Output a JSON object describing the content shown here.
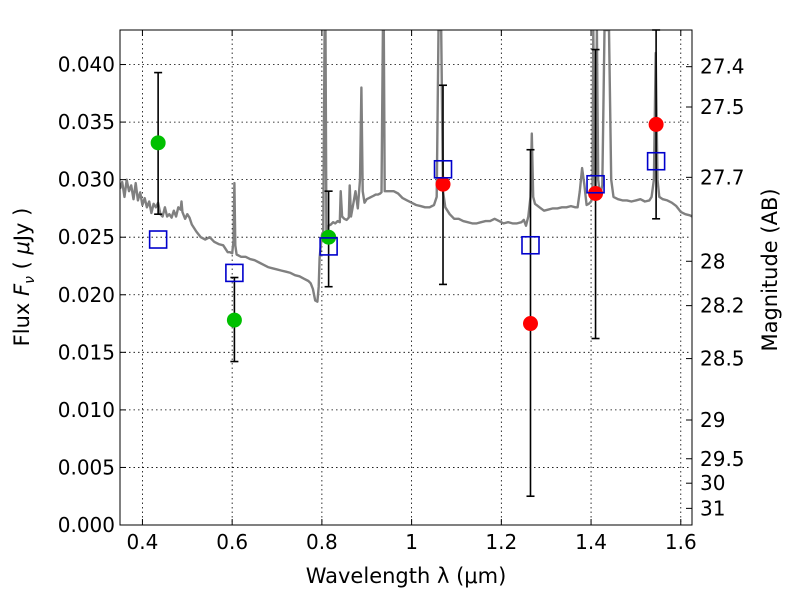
{
  "chart_data": {
    "type": "scatter",
    "xlabel": "Wavelength  λ (μm)",
    "ylabel": "Flux  F_ν  ( μJy )",
    "ylabel_parts": [
      "Flux  ",
      "F",
      "ν",
      "  ( ",
      "μ",
      "Jy )"
    ],
    "y2label": "Magnitude (AB)",
    "xlim": [
      0.35,
      1.625
    ],
    "ylim": [
      0.0,
      0.043
    ],
    "grid": true,
    "x_ticks": [
      0.4,
      0.6,
      0.8,
      1.0,
      1.2,
      1.4,
      1.6
    ],
    "x_tick_labels": [
      "0.4",
      "0.6",
      "0.8",
      "1",
      "1.2",
      "1.4",
      "1.6"
    ],
    "y_ticks": [
      0.0,
      0.005,
      0.01,
      0.015,
      0.02,
      0.025,
      0.03,
      0.035,
      0.04
    ],
    "y_tick_labels": [
      "0.000",
      "0.005",
      "0.010",
      "0.015",
      "0.020",
      "0.025",
      "0.030",
      "0.035",
      "0.040"
    ],
    "mag_ticks": [
      {
        "mag": 27.4,
        "label": "27.4"
      },
      {
        "mag": 27.5,
        "label": "27.5"
      },
      {
        "mag": 27.7,
        "label": "27.7"
      },
      {
        "mag": 28,
        "label": "28"
      },
      {
        "mag": 28.2,
        "label": "28.2"
      },
      {
        "mag": 28.5,
        "label": "28.5"
      },
      {
        "mag": 29,
        "label": "29"
      },
      {
        "mag": 29.5,
        "label": "29.5"
      },
      {
        "mag": 30,
        "label": "30"
      },
      {
        "mag": 31,
        "label": "31"
      }
    ],
    "model_spectrum": {
      "color": "#808080",
      "points": [
        [
          0.35,
          0.0292
        ],
        [
          0.355,
          0.0298
        ],
        [
          0.36,
          0.0285
        ],
        [
          0.365,
          0.03
        ],
        [
          0.37,
          0.029
        ],
        [
          0.375,
          0.0295
        ],
        [
          0.38,
          0.0283
        ],
        [
          0.385,
          0.0297
        ],
        [
          0.39,
          0.0282
        ],
        [
          0.395,
          0.0289
        ],
        [
          0.4,
          0.0278
        ],
        [
          0.405,
          0.0284
        ],
        [
          0.41,
          0.0276
        ],
        [
          0.415,
          0.0281
        ],
        [
          0.42,
          0.0271
        ],
        [
          0.425,
          0.0279
        ],
        [
          0.43,
          0.0276
        ],
        [
          0.435,
          0.028
        ],
        [
          0.44,
          0.027
        ],
        [
          0.445,
          0.0268
        ],
        [
          0.45,
          0.0276
        ],
        [
          0.455,
          0.0268
        ],
        [
          0.46,
          0.027
        ],
        [
          0.465,
          0.0267
        ],
        [
          0.47,
          0.0273
        ],
        [
          0.475,
          0.0268
        ],
        [
          0.48,
          0.0276
        ],
        [
          0.485,
          0.0274
        ],
        [
          0.487,
          0.0281
        ],
        [
          0.489,
          0.0272
        ],
        [
          0.495,
          0.0266
        ],
        [
          0.5,
          0.027
        ],
        [
          0.505,
          0.0267
        ],
        [
          0.51,
          0.0261
        ],
        [
          0.52,
          0.0255
        ],
        [
          0.53,
          0.025
        ],
        [
          0.54,
          0.0248
        ],
        [
          0.55,
          0.025
        ],
        [
          0.56,
          0.0246
        ],
        [
          0.57,
          0.0244
        ],
        [
          0.58,
          0.0243
        ],
        [
          0.59,
          0.0237
        ],
        [
          0.595,
          0.0237
        ],
        [
          0.6,
          0.0236
        ],
        [
          0.603,
          0.0247
        ],
        [
          0.605,
          0.0297
        ],
        [
          0.607,
          0.0243
        ],
        [
          0.61,
          0.0235
        ],
        [
          0.62,
          0.0233
        ],
        [
          0.63,
          0.0233
        ],
        [
          0.64,
          0.0231
        ],
        [
          0.65,
          0.023
        ],
        [
          0.66,
          0.0228
        ],
        [
          0.67,
          0.0226
        ],
        [
          0.68,
          0.0224
        ],
        [
          0.69,
          0.0223
        ],
        [
          0.7,
          0.0222
        ],
        [
          0.71,
          0.0221
        ],
        [
          0.72,
          0.022
        ],
        [
          0.73,
          0.0219
        ],
        [
          0.74,
          0.0217
        ],
        [
          0.75,
          0.0216
        ],
        [
          0.76,
          0.0214
        ],
        [
          0.77,
          0.0212
        ],
        [
          0.775,
          0.021
        ],
        [
          0.78,
          0.0205
        ],
        [
          0.785,
          0.0195
        ],
        [
          0.79,
          0.0194
        ],
        [
          0.793,
          0.0207
        ],
        [
          0.795,
          0.0232
        ],
        [
          0.8,
          0.0252
        ],
        [
          0.803,
          0.0247
        ],
        [
          0.806,
          0.043
        ],
        [
          0.808,
          0.043
        ],
        [
          0.81,
          0.0256
        ],
        [
          0.815,
          0.026
        ],
        [
          0.82,
          0.0261
        ],
        [
          0.825,
          0.0263
        ],
        [
          0.83,
          0.0262
        ],
        [
          0.835,
          0.0264
        ],
        [
          0.84,
          0.0263
        ],
        [
          0.842,
          0.029
        ],
        [
          0.845,
          0.0268
        ],
        [
          0.85,
          0.0266
        ],
        [
          0.855,
          0.0265
        ],
        [
          0.86,
          0.0267
        ],
        [
          0.862,
          0.0295
        ],
        [
          0.865,
          0.0268
        ],
        [
          0.87,
          0.0279
        ],
        [
          0.875,
          0.029
        ],
        [
          0.88,
          0.0275
        ],
        [
          0.885,
          0.03
        ],
        [
          0.888,
          0.038
        ],
        [
          0.891,
          0.029
        ],
        [
          0.895,
          0.028
        ],
        [
          0.9,
          0.0283
        ],
        [
          0.905,
          0.0284
        ],
        [
          0.91,
          0.0285
        ],
        [
          0.915,
          0.0286
        ],
        [
          0.92,
          0.0287
        ],
        [
          0.925,
          0.0287
        ],
        [
          0.93,
          0.0288
        ],
        [
          0.933,
          0.0289
        ],
        [
          0.936,
          0.043
        ],
        [
          0.938,
          0.043
        ],
        [
          0.94,
          0.029
        ],
        [
          0.95,
          0.029
        ],
        [
          0.96,
          0.029
        ],
        [
          0.97,
          0.0288
        ],
        [
          0.98,
          0.0284
        ],
        [
          0.99,
          0.0282
        ],
        [
          1.0,
          0.028
        ],
        [
          1.01,
          0.0278
        ],
        [
          1.02,
          0.0277
        ],
        [
          1.03,
          0.0276
        ],
        [
          1.04,
          0.0276
        ],
        [
          1.05,
          0.0278
        ],
        [
          1.056,
          0.0285
        ],
        [
          1.06,
          0.043
        ],
        [
          1.066,
          0.043
        ],
        [
          1.07,
          0.029
        ],
        [
          1.075,
          0.0276
        ],
        [
          1.085,
          0.027
        ],
        [
          1.095,
          0.0266
        ],
        [
          1.105,
          0.0266
        ],
        [
          1.115,
          0.0264
        ],
        [
          1.125,
          0.0263
        ],
        [
          1.135,
          0.0262
        ],
        [
          1.145,
          0.0262
        ],
        [
          1.155,
          0.0263
        ],
        [
          1.165,
          0.0264
        ],
        [
          1.175,
          0.0264
        ],
        [
          1.185,
          0.0266
        ],
        [
          1.195,
          0.0264
        ],
        [
          1.205,
          0.0262
        ],
        [
          1.215,
          0.0263
        ],
        [
          1.225,
          0.0262
        ],
        [
          1.235,
          0.0262
        ],
        [
          1.245,
          0.0263
        ],
        [
          1.25,
          0.0265
        ],
        [
          1.255,
          0.026
        ],
        [
          1.26,
          0.0268
        ],
        [
          1.265,
          0.0285
        ],
        [
          1.268,
          0.034
        ],
        [
          1.271,
          0.0285
        ],
        [
          1.275,
          0.0279
        ],
        [
          1.285,
          0.0276
        ],
        [
          1.295,
          0.0273
        ],
        [
          1.305,
          0.0274
        ],
        [
          1.315,
          0.0275
        ],
        [
          1.325,
          0.0275
        ],
        [
          1.335,
          0.0276
        ],
        [
          1.345,
          0.0276
        ],
        [
          1.355,
          0.0277
        ],
        [
          1.365,
          0.0276
        ],
        [
          1.37,
          0.0276
        ],
        [
          1.375,
          0.029
        ],
        [
          1.38,
          0.031
        ],
        [
          1.385,
          0.0296
        ],
        [
          1.39,
          0.0278
        ],
        [
          1.395,
          0.0279
        ],
        [
          1.4,
          0.0281
        ],
        [
          1.403,
          0.0285
        ],
        [
          1.405,
          0.043
        ],
        [
          1.408,
          0.031
        ],
        [
          1.41,
          0.0285
        ],
        [
          1.413,
          0.043
        ],
        [
          1.416,
          0.03
        ],
        [
          1.42,
          0.0286
        ],
        [
          1.425,
          0.0295
        ],
        [
          1.43,
          0.043
        ],
        [
          1.44,
          0.043
        ],
        [
          1.445,
          0.03
        ],
        [
          1.45,
          0.0285
        ],
        [
          1.46,
          0.0283
        ],
        [
          1.47,
          0.0282
        ],
        [
          1.48,
          0.0282
        ],
        [
          1.49,
          0.0281
        ],
        [
          1.5,
          0.0282
        ],
        [
          1.51,
          0.0283
        ],
        [
          1.52,
          0.0281
        ],
        [
          1.53,
          0.0282
        ],
        [
          1.535,
          0.0285
        ],
        [
          1.54,
          0.03
        ],
        [
          1.544,
          0.041
        ],
        [
          1.548,
          0.03
        ],
        [
          1.552,
          0.0285
        ],
        [
          1.56,
          0.0283
        ],
        [
          1.57,
          0.0282
        ],
        [
          1.58,
          0.028
        ],
        [
          1.59,
          0.0277
        ],
        [
          1.6,
          0.0272
        ],
        [
          1.61,
          0.027
        ],
        [
          1.62,
          0.0269
        ],
        [
          1.625,
          0.0268
        ]
      ]
    },
    "observed_points": [
      {
        "x": 0.435,
        "y": 0.0332,
        "yerr_low": 0.0062,
        "yerr_high": 0.0061,
        "color": "#00c000"
      },
      {
        "x": 0.605,
        "y": 0.0178,
        "yerr_low": 0.0036,
        "yerr_high": 0.0037,
        "color": "#00c000"
      },
      {
        "x": 0.815,
        "y": 0.025,
        "yerr_low": 0.0043,
        "yerr_high": 0.004,
        "color": "#00c000"
      },
      {
        "x": 1.07,
        "y": 0.0296,
        "yerr_low": 0.0087,
        "yerr_high": 0.0086,
        "color": "#ff0000"
      },
      {
        "x": 1.265,
        "y": 0.0175,
        "yerr_low": 0.015,
        "yerr_high": 0.0151,
        "color": "#ff0000"
      },
      {
        "x": 1.41,
        "y": 0.0288,
        "yerr_low": 0.0126,
        "yerr_high": 0.0125,
        "color": "#ff0000"
      },
      {
        "x": 1.545,
        "y": 0.0348,
        "yerr_low": 0.0082,
        "yerr_high": 0.0082,
        "color": "#ff0000"
      }
    ],
    "synthetic_photometry": [
      {
        "x": 0.435,
        "y": 0.0248
      },
      {
        "x": 0.605,
        "y": 0.0219
      },
      {
        "x": 0.815,
        "y": 0.0242
      },
      {
        "x": 1.07,
        "y": 0.0309
      },
      {
        "x": 1.265,
        "y": 0.0243
      },
      {
        "x": 1.41,
        "y": 0.0296
      },
      {
        "x": 1.545,
        "y": 0.0316
      }
    ],
    "colors": {
      "synthetic_square": "#0000cc",
      "errorbar": "#000000",
      "grid": "#000000"
    }
  }
}
